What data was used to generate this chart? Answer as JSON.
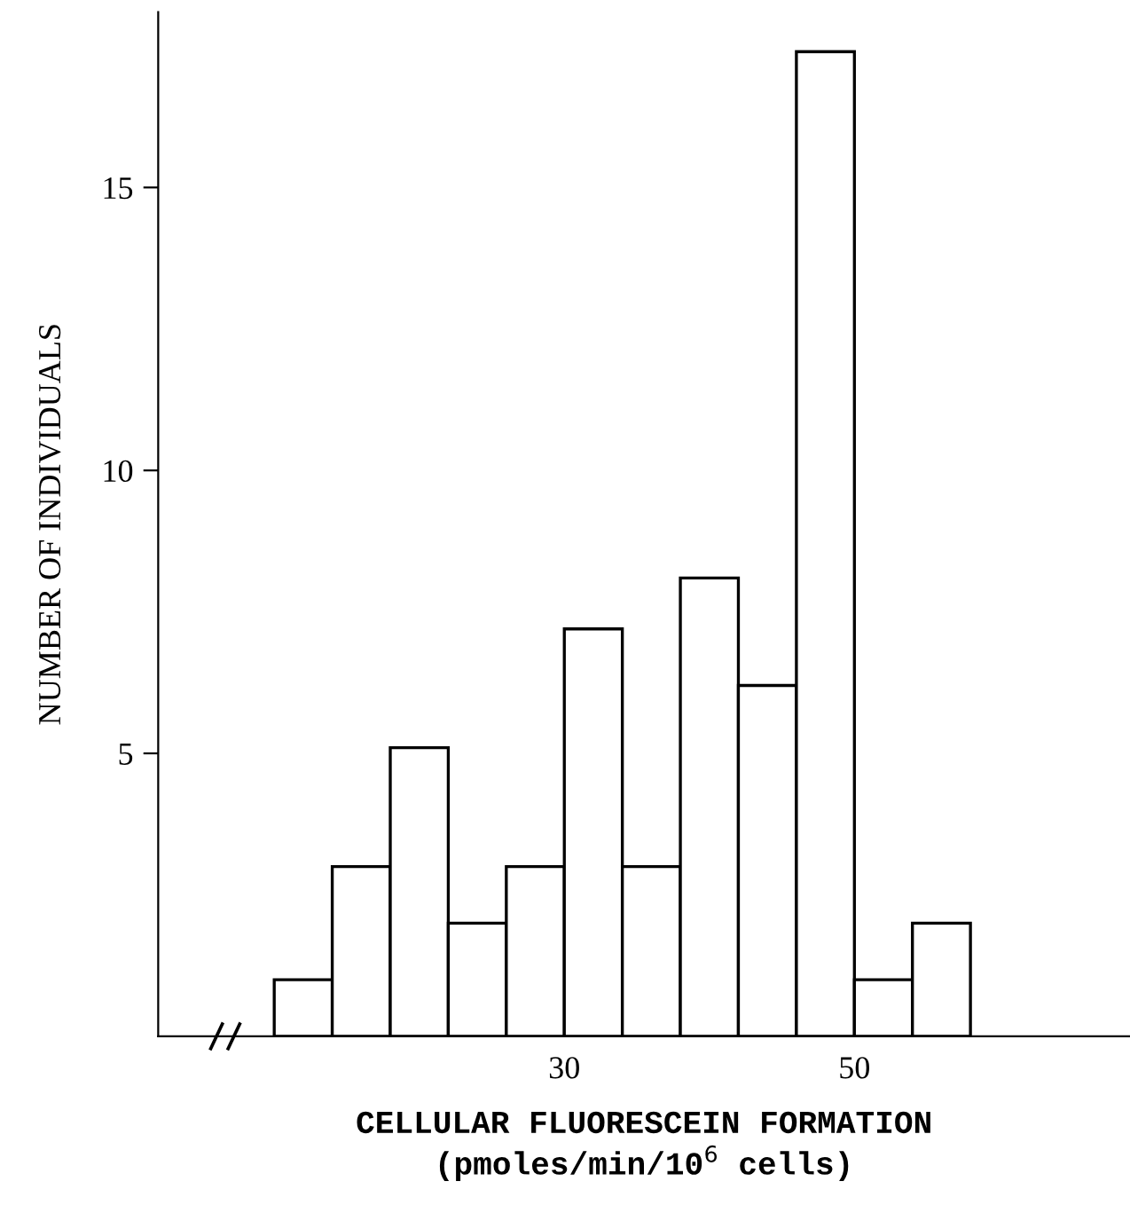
{
  "chart_data": {
    "type": "histogram",
    "xlabel": "CELLULAR FLUORESCEIN FORMATION\n(pmoles/min/10$^{6}$ cells)",
    "ylabel": "NUMBER OF INDIVIDUALS",
    "bins": [
      10,
      14,
      18,
      22,
      26,
      30,
      34,
      38,
      42,
      46,
      50,
      54,
      58
    ],
    "values": [
      1,
      3,
      5.1,
      2,
      3,
      7.2,
      3,
      8.1,
      6.2,
      17.4,
      1,
      2
    ],
    "xlim": [
      2,
      69
    ],
    "xticks": [
      30,
      50
    ],
    "ylim": [
      0,
      18.1
    ],
    "yticks": [
      5,
      10,
      15
    ],
    "grid": false,
    "legend": false
  }
}
